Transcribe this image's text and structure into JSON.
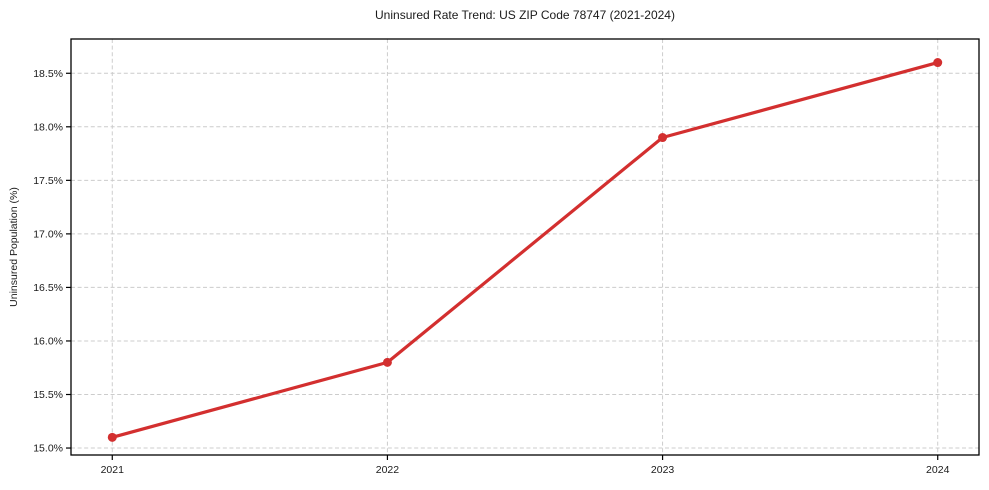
{
  "chart_data": {
    "type": "line",
    "title": "Uninsured Rate Trend: US ZIP Code 78747 (2021-2024)",
    "xlabel": "",
    "ylabel": "Uninsured Population (%)",
    "x": [
      2021,
      2022,
      2023,
      2024
    ],
    "values": [
      15.1,
      15.8,
      17.9,
      18.6
    ],
    "xlim": [
      2020.85,
      2024.15
    ],
    "ylim": [
      14.935,
      18.82
    ],
    "xticks": [
      2021,
      2022,
      2023,
      2024
    ],
    "xtick_labels": [
      "2021",
      "2022",
      "2023",
      "2024"
    ],
    "yticks": [
      15.0,
      15.5,
      16.0,
      16.5,
      17.0,
      17.5,
      18.0,
      18.5
    ],
    "ytick_labels": [
      "15.0%",
      "15.5%",
      "16.0%",
      "16.5%",
      "17.0%",
      "17.5%",
      "18.0%",
      "18.5%"
    ],
    "grid": true,
    "grid_style": "dashed",
    "legend": false,
    "colors": {
      "line": "#d32f2f",
      "marker": "#d32f2f",
      "grid": "#cccccc",
      "spine": "#000000",
      "text": "#1a1a1a",
      "background": "#ffffff"
    }
  }
}
